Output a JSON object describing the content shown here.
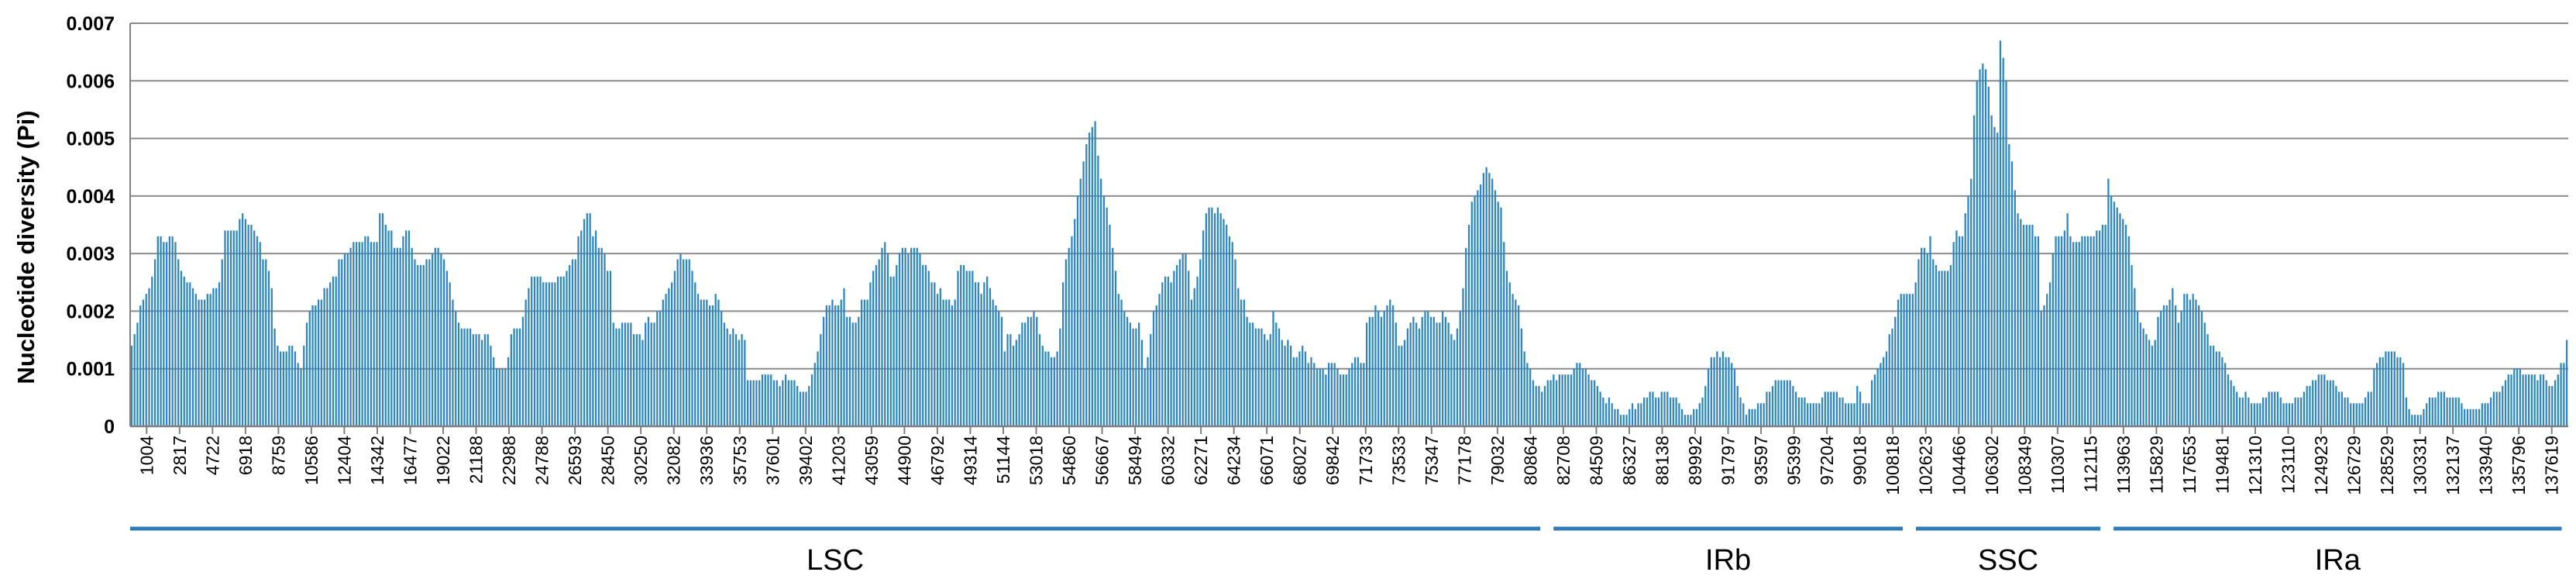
{
  "chart_data": {
    "type": "bar",
    "ylabel": "Nucleotide diversity (Pi)",
    "xlabel": "",
    "ylim": [
      0,
      0.007
    ],
    "yticks": [
      "0",
      "0.001",
      "0.002",
      "0.003",
      "0.004",
      "0.005",
      "0.006",
      "0.007"
    ],
    "grid": true,
    "bar_color": "#2e86c1",
    "axis_color": "#808080",
    "region_color": "#2e7bb8",
    "x_tick_labels": [
      "1004",
      "2817",
      "4722",
      "6918",
      "8759",
      "10586",
      "12404",
      "14342",
      "16477",
      "19022",
      "21188",
      "22988",
      "24788",
      "26593",
      "28450",
      "30250",
      "32082",
      "33936",
      "35753",
      "37601",
      "39402",
      "41203",
      "43059",
      "44900",
      "46792",
      "49314",
      "51144",
      "53018",
      "54860",
      "56667",
      "58494",
      "60332",
      "62271",
      "64234",
      "66071",
      "68027",
      "69842",
      "71733",
      "73533",
      "75347",
      "77178",
      "79032",
      "80864",
      "82708",
      "84509",
      "86327",
      "88138",
      "89992",
      "91797",
      "93597",
      "95399",
      "97204",
      "99018",
      "100818",
      "102623",
      "104466",
      "106302",
      "108349",
      "110307",
      "112115",
      "113963",
      "115829",
      "117653",
      "119481",
      "121310",
      "123110",
      "124923",
      "126729",
      "128529",
      "130331",
      "132137",
      "133940",
      "135796",
      "137619"
    ],
    "regions": [
      {
        "name": "LSC",
        "from_tick": 0,
        "to_tick": 42
      },
      {
        "name": "IRb",
        "from_tick": 43,
        "to_tick": 53
      },
      {
        "name": "SSC",
        "from_tick": 54,
        "to_tick": 59
      },
      {
        "name": "IRa",
        "from_tick": 60,
        "to_tick": 73
      }
    ],
    "values": [
      0.0014,
      0.0016,
      0.0018,
      0.0021,
      0.0022,
      0.0023,
      0.0024,
      0.0026,
      0.0029,
      0.0033,
      0.0033,
      0.0032,
      0.0032,
      0.0033,
      0.0033,
      0.0032,
      0.0029,
      0.0027,
      0.0026,
      0.0025,
      0.0025,
      0.0024,
      0.0023,
      0.0022,
      0.0022,
      0.0022,
      0.0023,
      0.0023,
      0.0024,
      0.0024,
      0.0025,
      0.0029,
      0.0034,
      0.0034,
      0.0034,
      0.0034,
      0.0034,
      0.0036,
      0.0037,
      0.0036,
      0.0035,
      0.0035,
      0.0034,
      0.0033,
      0.0032,
      0.0029,
      0.0029,
      0.0027,
      0.0024,
      0.0017,
      0.0014,
      0.0013,
      0.0013,
      0.0013,
      0.0014,
      0.0014,
      0.0013,
      0.0011,
      0.001,
      0.0014,
      0.0018,
      0.002,
      0.0021,
      0.0021,
      0.0022,
      0.0022,
      0.0024,
      0.0024,
      0.0025,
      0.0026,
      0.0026,
      0.0029,
      0.0029,
      0.003,
      0.003,
      0.0031,
      0.0032,
      0.0032,
      0.0032,
      0.0032,
      0.0033,
      0.0033,
      0.0032,
      0.0032,
      0.0032,
      0.0037,
      0.0037,
      0.0035,
      0.0034,
      0.0034,
      0.0031,
      0.0031,
      0.0031,
      0.0033,
      0.0034,
      0.0034,
      0.0031,
      0.0029,
      0.0028,
      0.0028,
      0.0028,
      0.0029,
      0.0029,
      0.003,
      0.0031,
      0.0031,
      0.003,
      0.0029,
      0.0027,
      0.0025,
      0.0022,
      0.002,
      0.0018,
      0.0017,
      0.0017,
      0.0017,
      0.0017,
      0.0016,
      0.0016,
      0.0016,
      0.0015,
      0.0016,
      0.0016,
      0.0014,
      0.0012,
      0.001,
      0.001,
      0.001,
      0.001,
      0.0012,
      0.0016,
      0.0017,
      0.0017,
      0.0017,
      0.0019,
      0.0022,
      0.0024,
      0.0026,
      0.0026,
      0.0026,
      0.0026,
      0.0025,
      0.0025,
      0.0025,
      0.0025,
      0.0025,
      0.0026,
      0.0026,
      0.0026,
      0.0027,
      0.0028,
      0.0029,
      0.0029,
      0.0033,
      0.0034,
      0.0036,
      0.0037,
      0.0037,
      0.0033,
      0.0034,
      0.0031,
      0.0031,
      0.003,
      0.0027,
      0.0027,
      0.0018,
      0.0017,
      0.0017,
      0.0018,
      0.0018,
      0.0018,
      0.0018,
      0.0016,
      0.0016,
      0.0016,
      0.0015,
      0.0018,
      0.0019,
      0.0018,
      0.0018,
      0.002,
      0.002,
      0.0022,
      0.0023,
      0.0024,
      0.0025,
      0.0027,
      0.0029,
      0.003,
      0.0029,
      0.0029,
      0.0029,
      0.0027,
      0.0025,
      0.0023,
      0.0022,
      0.0022,
      0.0022,
      0.0021,
      0.0021,
      0.0023,
      0.0022,
      0.002,
      0.0018,
      0.0017,
      0.0016,
      0.0017,
      0.0016,
      0.0015,
      0.0016,
      0.0015,
      0.0008,
      0.0008,
      0.0008,
      0.0008,
      0.0008,
      0.0009,
      0.0009,
      0.0009,
      0.0009,
      0.0008,
      0.0008,
      0.0007,
      0.0008,
      0.0009,
      0.0008,
      0.0008,
      0.0008,
      0.0007,
      0.0006,
      0.0006,
      0.0006,
      0.0007,
      0.0009,
      0.0011,
      0.0013,
      0.0016,
      0.0019,
      0.0021,
      0.0021,
      0.0022,
      0.0021,
      0.0021,
      0.0022,
      0.0024,
      0.0019,
      0.0019,
      0.0018,
      0.0018,
      0.0019,
      0.0022,
      0.0022,
      0.0022,
      0.0025,
      0.0027,
      0.0028,
      0.0029,
      0.0031,
      0.0032,
      0.003,
      0.0026,
      0.0026,
      0.0028,
      0.003,
      0.0031,
      0.0031,
      0.003,
      0.0031,
      0.0031,
      0.0031,
      0.003,
      0.0028,
      0.0028,
      0.0027,
      0.0025,
      0.0025,
      0.0023,
      0.0024,
      0.0022,
      0.0022,
      0.0022,
      0.0021,
      0.0022,
      0.0027,
      0.0028,
      0.0028,
      0.0027,
      0.0027,
      0.0027,
      0.0025,
      0.0025,
      0.0023,
      0.0025,
      0.0026,
      0.0024,
      0.0022,
      0.0021,
      0.002,
      0.0019,
      0.0013,
      0.0016,
      0.0016,
      0.0014,
      0.0015,
      0.0016,
      0.0018,
      0.0018,
      0.0019,
      0.0019,
      0.002,
      0.0019,
      0.0016,
      0.0014,
      0.0013,
      0.0013,
      0.0012,
      0.0012,
      0.0013,
      0.0017,
      0.0025,
      0.0029,
      0.0031,
      0.0033,
      0.0036,
      0.004,
      0.0043,
      0.0046,
      0.0049,
      0.0051,
      0.0052,
      0.0053,
      0.0047,
      0.0043,
      0.004,
      0.0038,
      0.0035,
      0.0031,
      0.0027,
      0.0023,
      0.0022,
      0.002,
      0.0019,
      0.0018,
      0.0017,
      0.0017,
      0.0018,
      0.0015,
      0.001,
      0.0012,
      0.0016,
      0.002,
      0.0021,
      0.0023,
      0.0025,
      0.0026,
      0.0026,
      0.0025,
      0.0027,
      0.0028,
      0.0029,
      0.003,
      0.003,
      0.0027,
      0.0022,
      0.0024,
      0.0026,
      0.0029,
      0.0034,
      0.0037,
      0.0038,
      0.0038,
      0.0037,
      0.0038,
      0.0037,
      0.0036,
      0.0035,
      0.0033,
      0.0032,
      0.0029,
      0.0024,
      0.0022,
      0.0022,
      0.0019,
      0.0018,
      0.0018,
      0.0017,
      0.0017,
      0.0017,
      0.0016,
      0.0015,
      0.0016,
      0.002,
      0.0018,
      0.0017,
      0.0015,
      0.0014,
      0.0015,
      0.0014,
      0.0012,
      0.0012,
      0.0013,
      0.0014,
      0.0013,
      0.0011,
      0.0012,
      0.0011,
      0.001,
      0.001,
      0.001,
      0.0009,
      0.0011,
      0.0011,
      0.0011,
      0.001,
      0.0009,
      0.0009,
      0.0009,
      0.001,
      0.0011,
      0.0012,
      0.0012,
      0.0011,
      0.0011,
      0.0018,
      0.0019,
      0.0019,
      0.0021,
      0.002,
      0.0019,
      0.002,
      0.0021,
      0.0022,
      0.0021,
      0.0018,
      0.0014,
      0.0014,
      0.0015,
      0.0017,
      0.0018,
      0.0019,
      0.0018,
      0.0017,
      0.0019,
      0.002,
      0.002,
      0.0019,
      0.0019,
      0.0018,
      0.0018,
      0.002,
      0.0019,
      0.0018,
      0.0016,
      0.0015,
      0.0017,
      0.002,
      0.0024,
      0.0031,
      0.0035,
      0.0039,
      0.004,
      0.0041,
      0.0042,
      0.0044,
      0.0045,
      0.0044,
      0.0043,
      0.0041,
      0.0039,
      0.0038,
      0.0032,
      0.0027,
      0.0025,
      0.0023,
      0.0022,
      0.0021,
      0.0017,
      0.0013,
      0.0011,
      0.001,
      0.0008,
      0.0007,
      0.0007,
      0.0006,
      0.0007,
      0.0008,
      0.0008,
      0.0009,
      0.0008,
      0.0009,
      0.0009,
      0.0009,
      0.0009,
      0.0009,
      0.001,
      0.0011,
      0.0011,
      0.001,
      0.001,
      0.0009,
      0.0008,
      0.0008,
      0.0007,
      0.0006,
      0.0005,
      0.0004,
      0.0005,
      0.0004,
      0.0003,
      0.0003,
      0.0002,
      0.0002,
      0.0002,
      0.0003,
      0.0004,
      0.0003,
      0.0004,
      0.0004,
      0.0005,
      0.0005,
      0.0006,
      0.0006,
      0.0005,
      0.0005,
      0.0006,
      0.0006,
      0.0006,
      0.0005,
      0.0005,
      0.0005,
      0.0004,
      0.0003,
      0.0002,
      0.0002,
      0.0002,
      0.0003,
      0.0003,
      0.0004,
      0.0005,
      0.0007,
      0.001,
      0.0012,
      0.0012,
      0.0013,
      0.0012,
      0.0013,
      0.0012,
      0.0012,
      0.0011,
      0.001,
      0.0007,
      0.0005,
      0.0004,
      0.0002,
      0.0003,
      0.0003,
      0.0003,
      0.0004,
      0.0004,
      0.0004,
      0.0006,
      0.0006,
      0.0007,
      0.0008,
      0.0008,
      0.0008,
      0.0008,
      0.0008,
      0.0008,
      0.0007,
      0.0006,
      0.0005,
      0.0005,
      0.0005,
      0.0004,
      0.0004,
      0.0004,
      0.0004,
      0.0004,
      0.0005,
      0.0006,
      0.0006,
      0.0006,
      0.0006,
      0.0006,
      0.0005,
      0.0005,
      0.0004,
      0.0004,
      0.0004,
      0.0004,
      0.0007,
      0.0006,
      0.0004,
      0.0004,
      0.0004,
      0.0008,
      0.0009,
      0.001,
      0.0011,
      0.0012,
      0.0013,
      0.0016,
      0.0017,
      0.0019,
      0.0022,
      0.0023,
      0.0023,
      0.0023,
      0.0023,
      0.0023,
      0.0025,
      0.0029,
      0.0031,
      0.0031,
      0.003,
      0.0033,
      0.0029,
      0.0028,
      0.0027,
      0.0027,
      0.0027,
      0.0027,
      0.0028,
      0.0032,
      0.0034,
      0.0033,
      0.0033,
      0.0037,
      0.004,
      0.0043,
      0.0054,
      0.006,
      0.0062,
      0.0063,
      0.0062,
      0.0059,
      0.0054,
      0.0052,
      0.0051,
      0.0067,
      0.0064,
      0.006,
      0.0049,
      0.0046,
      0.0041,
      0.0037,
      0.0036,
      0.0035,
      0.0035,
      0.0035,
      0.0035,
      0.0033,
      0.0033,
      0.002,
      0.0021,
      0.0023,
      0.0025,
      0.003,
      0.0033,
      0.0033,
      0.0033,
      0.0034,
      0.0037,
      0.0033,
      0.0032,
      0.0032,
      0.0032,
      0.0033,
      0.0033,
      0.0033,
      0.0033,
      0.0033,
      0.0034,
      0.0034,
      0.0035,
      0.0035,
      0.0043,
      0.004,
      0.0039,
      0.0038,
      0.0037,
      0.0036,
      0.0035,
      0.0033,
      0.0028,
      0.0024,
      0.002,
      0.0018,
      0.0017,
      0.0016,
      0.0015,
      0.0014,
      0.0015,
      0.0019,
      0.002,
      0.0021,
      0.0021,
      0.0022,
      0.0024,
      0.0021,
      0.0018,
      0.002,
      0.0023,
      0.0023,
      0.0022,
      0.0023,
      0.0022,
      0.0021,
      0.002,
      0.0018,
      0.0016,
      0.0014,
      0.0014,
      0.0013,
      0.0013,
      0.0012,
      0.0011,
      0.0009,
      0.0008,
      0.0007,
      0.0006,
      0.0005,
      0.0005,
      0.0006,
      0.0005,
      0.0004,
      0.0004,
      0.0004,
      0.0004,
      0.0005,
      0.0005,
      0.0006,
      0.0006,
      0.0006,
      0.0006,
      0.0005,
      0.0004,
      0.0004,
      0.0004,
      0.0004,
      0.0005,
      0.0005,
      0.0005,
      0.0006,
      0.0007,
      0.0007,
      0.0008,
      0.0008,
      0.0009,
      0.0009,
      0.0009,
      0.0008,
      0.0008,
      0.0008,
      0.0007,
      0.0006,
      0.0006,
      0.0005,
      0.0005,
      0.0004,
      0.0004,
      0.0004,
      0.0004,
      0.0004,
      0.0005,
      0.0006,
      0.0006,
      0.001,
      0.0011,
      0.0012,
      0.0012,
      0.0013,
      0.0013,
      0.0013,
      0.0013,
      0.0012,
      0.0012,
      0.0011,
      0.0005,
      0.0003,
      0.0002,
      0.0002,
      0.0002,
      0.0002,
      0.0003,
      0.0004,
      0.0005,
      0.0005,
      0.0005,
      0.0006,
      0.0006,
      0.0006,
      0.0005,
      0.0005,
      0.0005,
      0.0005,
      0.0005,
      0.0004,
      0.0003,
      0.0003,
      0.0003,
      0.0003,
      0.0003,
      0.0003,
      0.0004,
      0.0004,
      0.0004,
      0.0005,
      0.0006,
      0.0006,
      0.0006,
      0.0007,
      0.0008,
      0.0009,
      0.0009,
      0.001,
      0.001,
      0.001,
      0.0009,
      0.0009,
      0.0009,
      0.0009,
      0.0009,
      0.0008,
      0.0009,
      0.0009,
      0.0008,
      0.0007,
      0.0007,
      0.0008,
      0.0009,
      0.0011,
      0.0011,
      0.0015
    ]
  }
}
